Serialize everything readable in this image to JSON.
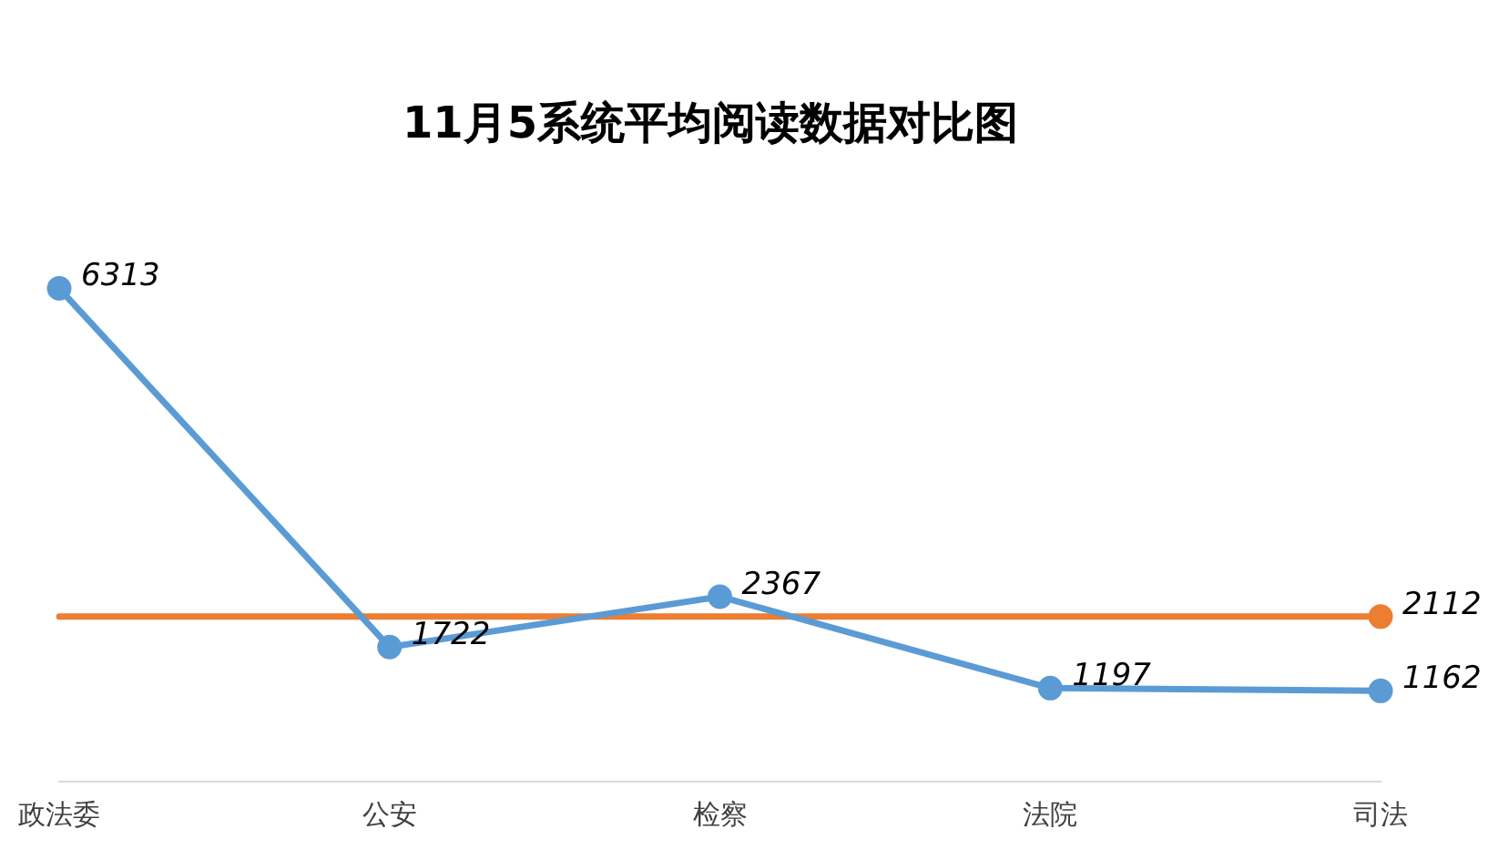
{
  "chart_data": {
    "type": "line",
    "title": "11月5系统平均阅读数据对比图",
    "categories": [
      "政法委",
      "公安",
      "检察",
      "法院",
      "司法"
    ],
    "series": [
      {
        "color": "#5b9bd5",
        "values": [
          6313,
          1722,
          2367,
          1197,
          1162
        ],
        "data_labels": true
      },
      {
        "color": "#ed7d31",
        "values": [
          2112,
          2112,
          2112,
          2112,
          2112
        ],
        "marker": "none"
      },
      {
        "type": "scatter",
        "color": "#ed7d31",
        "values": [
          null,
          null,
          null,
          null,
          2112
        ],
        "data_labels": true
      }
    ],
    "marker": "circle",
    "line_style": "solid",
    "grid": false,
    "legend": false,
    "tick_labels": "x"
  }
}
